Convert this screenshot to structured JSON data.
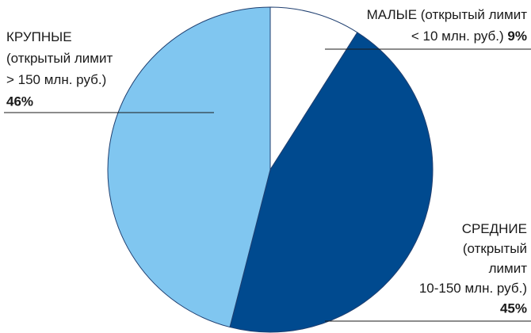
{
  "chart_data": {
    "type": "pie",
    "categories": [
      [
        "МАЛЫЕ (открытый лимит",
        "< 10 млн.  руб.)"
      ],
      [
        "СРЕДНИЕ",
        "(открытый",
        "лимит",
        "10-150 млн. руб.)"
      ],
      [
        "КРУПНЫЕ",
        "(открытый лимит",
        "> 150 млн. руб.)"
      ]
    ],
    "values": [
      9,
      45,
      46
    ],
    "value_labels": [
      "9%",
      "45%",
      "46%"
    ],
    "colors": [
      "#ffffff",
      "#004a8f",
      "#80c6f0"
    ]
  }
}
